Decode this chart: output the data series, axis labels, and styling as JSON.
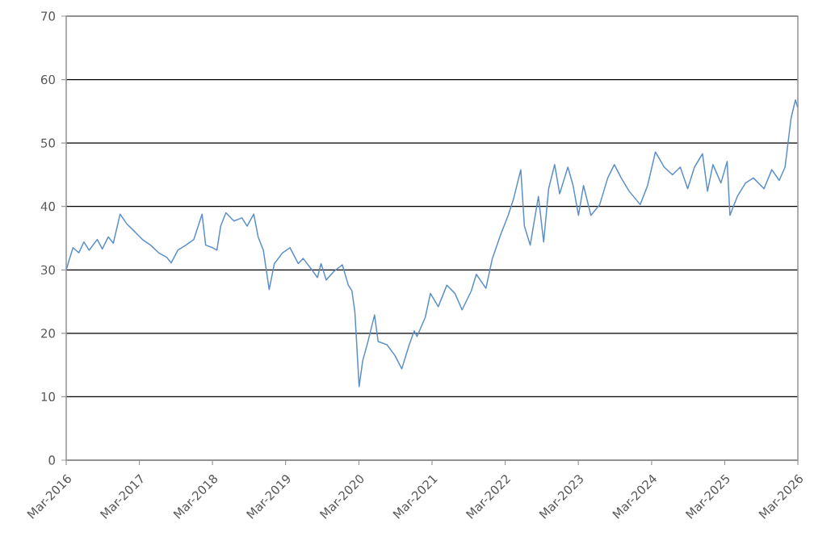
{
  "chart_data": {
    "type": "line",
    "x": [
      "2016-03-02",
      "2016-03-16",
      "2016-04-04",
      "2016-05-03",
      "2016-05-28",
      "2016-06-23",
      "2016-08-03",
      "2016-08-28",
      "2016-09-27",
      "2016-10-22",
      "2016-11-25",
      "2016-12-27",
      "2017-02-07",
      "2017-03-16",
      "2017-04-26",
      "2017-06-05",
      "2017-07-15",
      "2017-08-07",
      "2017-09-09",
      "2017-10-19",
      "2017-11-28",
      "2018-01-08",
      "2018-01-26",
      "2018-03-02",
      "2018-03-23",
      "2018-04-11",
      "2018-05-07",
      "2018-06-16",
      "2018-07-26",
      "2018-08-21",
      "2018-09-23",
      "2018-10-15",
      "2018-11-10",
      "2018-12-09",
      "2019-01-04",
      "2019-02-14",
      "2019-03-23",
      "2019-05-03",
      "2019-05-28",
      "2019-07-08",
      "2019-08-07",
      "2019-08-25",
      "2019-09-20",
      "2019-10-26",
      "2019-12-09",
      "2020-01-08",
      "2020-01-26",
      "2020-02-10",
      "2020-03-02",
      "2020-03-20",
      "2020-04-15",
      "2020-05-18",
      "2020-06-05",
      "2020-07-19",
      "2020-08-28",
      "2020-10-01",
      "2020-11-07",
      "2020-12-02",
      "2020-12-16",
      "2021-01-26",
      "2021-02-21",
      "2021-04-01",
      "2021-05-14",
      "2021-06-23",
      "2021-07-29",
      "2021-09-13",
      "2021-10-08",
      "2021-11-25",
      "2021-12-27",
      "2022-02-07",
      "2022-03-16",
      "2022-04-11",
      "2022-05-18",
      "2022-06-05",
      "2022-07-04",
      "2022-08-14",
      "2022-09-09",
      "2022-10-04",
      "2022-11-03",
      "2022-11-28",
      "2023-01-08",
      "2023-02-03",
      "2023-03-02",
      "2023-03-27",
      "2023-05-03",
      "2023-06-16",
      "2023-07-26",
      "2023-08-28",
      "2023-10-01",
      "2023-11-10",
      "2024-01-04",
      "2024-02-10",
      "2024-03-20",
      "2024-05-03",
      "2024-06-13",
      "2024-07-22",
      "2024-08-28",
      "2024-10-01",
      "2024-11-10",
      "2024-12-05",
      "2025-01-01",
      "2025-02-10",
      "2025-03-13",
      "2025-03-27",
      "2025-05-03",
      "2025-06-13",
      "2025-07-22",
      "2025-09-13",
      "2025-10-22",
      "2025-11-28",
      "2025-12-27",
      "2026-01-26",
      "2026-02-17",
      "2026-02-28"
    ],
    "series": [
      {
        "color": "#5b8fc7",
        "values": [
          30.1,
          31.6,
          33.5,
          32.7,
          34.4,
          33.1,
          34.8,
          33.3,
          35.2,
          34.2,
          38.8,
          37.3,
          36.0,
          34.8,
          33.9,
          32.7,
          32.0,
          31.1,
          33.1,
          33.9,
          34.8,
          38.8,
          33.9,
          33.5,
          33.1,
          36.9,
          39.0,
          37.7,
          38.2,
          36.9,
          38.8,
          35.2,
          33.1,
          26.9,
          31.0,
          32.7,
          33.5,
          31.0,
          31.8,
          30.1,
          28.8,
          31.0,
          28.4,
          29.7,
          30.8,
          27.6,
          26.7,
          23.3,
          11.6,
          15.7,
          18.7,
          22.9,
          18.7,
          18.2,
          16.5,
          14.4,
          18.2,
          20.4,
          19.5,
          22.5,
          26.3,
          24.2,
          27.6,
          26.3,
          23.7,
          26.7,
          29.3,
          27.1,
          31.8,
          35.6,
          38.6,
          41.1,
          45.8,
          36.9,
          33.9,
          41.6,
          34.4,
          42.8,
          46.6,
          42.0,
          46.2,
          43.3,
          38.6,
          43.3,
          38.6,
          40.3,
          44.5,
          46.6,
          44.5,
          42.4,
          40.3,
          43.3,
          48.6,
          46.2,
          45.0,
          46.2,
          42.8,
          46.2,
          48.3,
          42.4,
          46.6,
          43.7,
          47.1,
          38.6,
          41.6,
          43.7,
          44.5,
          42.8,
          45.8,
          44.1,
          46.2,
          53.9,
          56.8,
          55.6
        ]
      }
    ],
    "xlim": [
      "2016-03-01",
      "2026-03-01"
    ],
    "xticks": [
      {
        "value": "2016-03-01",
        "label": "Mar-2016"
      },
      {
        "value": "2017-03-01",
        "label": "Mar-2017"
      },
      {
        "value": "2018-03-01",
        "label": "Mar-2018"
      },
      {
        "value": "2019-03-01",
        "label": "Mar-2019"
      },
      {
        "value": "2020-03-01",
        "label": "Mar-2020"
      },
      {
        "value": "2021-03-01",
        "label": "Mar-2021"
      },
      {
        "value": "2022-03-01",
        "label": "Mar-2022"
      },
      {
        "value": "2023-03-01",
        "label": "Mar-2023"
      },
      {
        "value": "2024-03-01",
        "label": "Mar-2024"
      },
      {
        "value": "2025-03-01",
        "label": "Mar-2025"
      },
      {
        "value": "2026-03-01",
        "label": "Mar-2026"
      }
    ],
    "ylim": [
      0,
      70
    ],
    "yticks": [
      0,
      10,
      20,
      30,
      40,
      50,
      60,
      70
    ],
    "grid": "y",
    "marker": "none",
    "line_style": "solid"
  }
}
